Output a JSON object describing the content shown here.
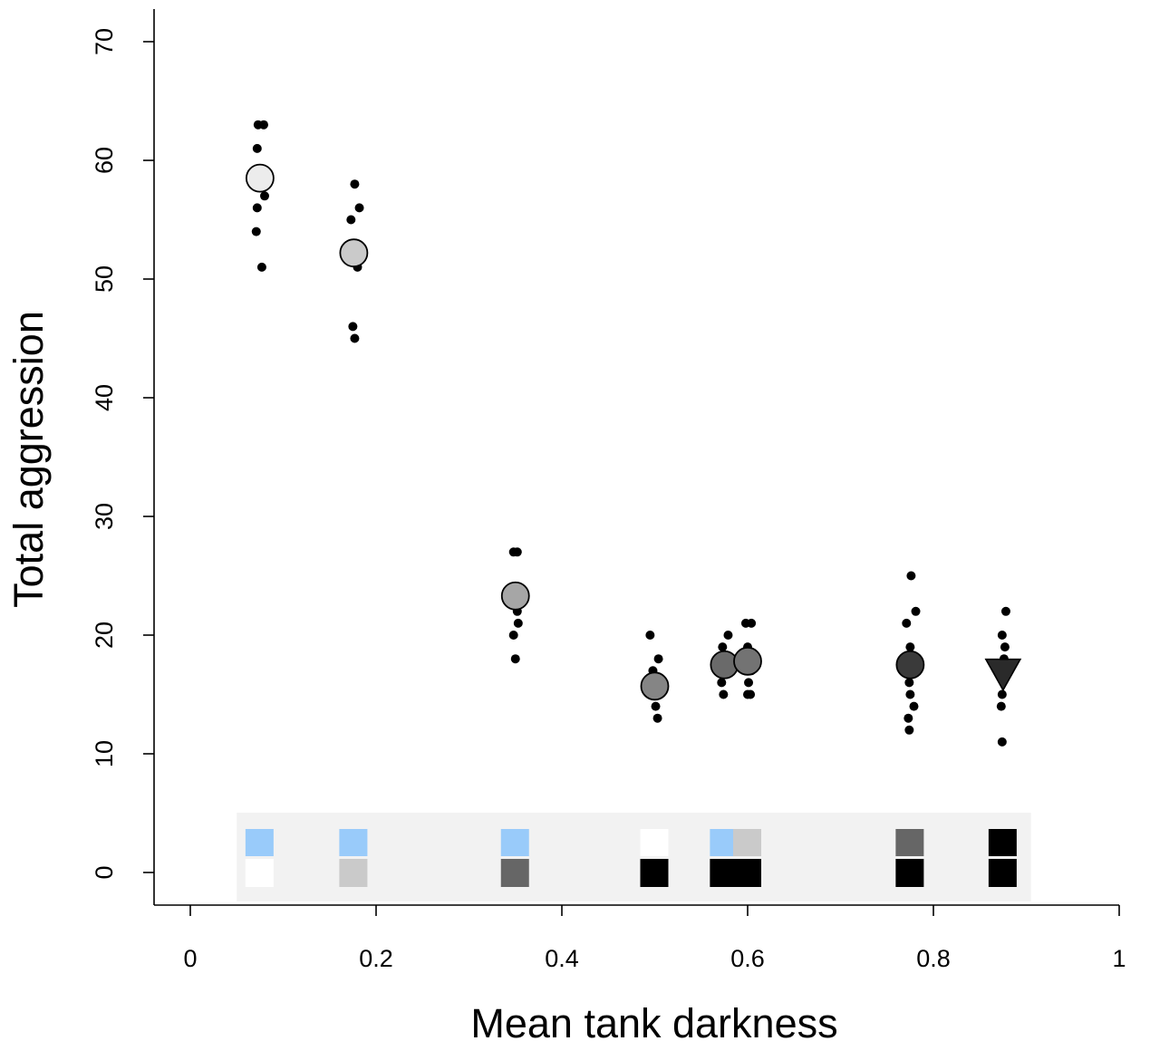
{
  "chart_data": {
    "type": "scatter",
    "title": "",
    "xlabel": "Mean tank darkness",
    "ylabel": "Total aggression",
    "xlim": [
      0,
      1
    ],
    "ylim": [
      0,
      70
    ],
    "xticks": [
      {
        "value": 0,
        "label": "0"
      },
      {
        "value": 0.2,
        "label": "0.2"
      },
      {
        "value": 0.4,
        "label": "0.4"
      },
      {
        "value": 0.6,
        "label": "0.6"
      },
      {
        "value": 0.8,
        "label": "0.8"
      },
      {
        "value": 1,
        "label": "1"
      }
    ],
    "yticks": [
      {
        "value": 0,
        "label": "0"
      },
      {
        "value": 10,
        "label": "10"
      },
      {
        "value": 20,
        "label": "20"
      },
      {
        "value": 30,
        "label": "30"
      },
      {
        "value": 40,
        "label": "40"
      },
      {
        "value": 50,
        "label": "50"
      },
      {
        "value": 60,
        "label": "60"
      },
      {
        "value": 70,
        "label": "70"
      }
    ],
    "grid": false,
    "legend": "none",
    "groups": [
      {
        "x": 0.075,
        "mean": 58.5,
        "marker": "circle",
        "mean_color": "#ececec",
        "points": [
          {
            "x": 0.073,
            "y": 63
          },
          {
            "x": 0.079,
            "y": 63
          },
          {
            "x": 0.072,
            "y": 61
          },
          {
            "x": 0.08,
            "y": 57
          },
          {
            "x": 0.072,
            "y": 56
          },
          {
            "x": 0.071,
            "y": 54
          },
          {
            "x": 0.077,
            "y": 51
          }
        ],
        "swatch": {
          "top": "#99cbfa",
          "bottom": "#ffffff"
        }
      },
      {
        "x": 0.176,
        "mean": 52.2,
        "marker": "circle",
        "mean_color": "#cacaca",
        "points": [
          {
            "x": 0.177,
            "y": 58
          },
          {
            "x": 0.182,
            "y": 56
          },
          {
            "x": 0.173,
            "y": 55
          },
          {
            "x": 0.18,
            "y": 51
          },
          {
            "x": 0.175,
            "y": 46
          },
          {
            "x": 0.177,
            "y": 45
          }
        ],
        "swatch": {
          "top": "#99cbfa",
          "bottom": "#cacaca"
        }
      },
      {
        "x": 0.35,
        "mean": 23.3,
        "marker": "circle",
        "mean_color": "#a6a6a6",
        "points": [
          {
            "x": 0.348,
            "y": 27
          },
          {
            "x": 0.352,
            "y": 27
          },
          {
            "x": 0.352,
            "y": 22
          },
          {
            "x": 0.353,
            "y": 21
          },
          {
            "x": 0.348,
            "y": 20
          },
          {
            "x": 0.35,
            "y": 18
          }
        ],
        "swatch": {
          "top": "#99cbfa",
          "bottom": "#666666"
        }
      },
      {
        "x": 0.5,
        "mean": 15.7,
        "marker": "circle",
        "mean_color": "#858585",
        "points": [
          {
            "x": 0.495,
            "y": 20
          },
          {
            "x": 0.504,
            "y": 18
          },
          {
            "x": 0.498,
            "y": 17
          },
          {
            "x": 0.501,
            "y": 14
          },
          {
            "x": 0.503,
            "y": 13
          }
        ],
        "swatch": {
          "top": "#ffffff",
          "bottom": "#000000"
        }
      },
      {
        "x": 0.575,
        "mean": 17.5,
        "marker": "circle",
        "mean_color": "#6a6a6a",
        "points": [
          {
            "x": 0.579,
            "y": 20
          },
          {
            "x": 0.573,
            "y": 19
          },
          {
            "x": 0.577,
            "y": 18
          },
          {
            "x": 0.572,
            "y": 16
          },
          {
            "x": 0.574,
            "y": 15
          }
        ],
        "swatch": {
          "top": "#99cbfa",
          "bottom": "#000000"
        }
      },
      {
        "x": 0.6,
        "mean": 17.8,
        "marker": "circle",
        "mean_color": "#737373",
        "points": [
          {
            "x": 0.598,
            "y": 21
          },
          {
            "x": 0.604,
            "y": 21
          },
          {
            "x": 0.6,
            "y": 19
          },
          {
            "x": 0.604,
            "y": 17
          },
          {
            "x": 0.601,
            "y": 16
          },
          {
            "x": 0.6,
            "y": 15
          },
          {
            "x": 0.603,
            "y": 15
          }
        ],
        "swatch": {
          "top": "#cacaca",
          "bottom": "#000000"
        }
      },
      {
        "x": 0.775,
        "mean": 17.5,
        "marker": "circle",
        "mean_color": "#3a3a3a",
        "points": [
          {
            "x": 0.776,
            "y": 25
          },
          {
            "x": 0.781,
            "y": 22
          },
          {
            "x": 0.771,
            "y": 21
          },
          {
            "x": 0.775,
            "y": 19
          },
          {
            "x": 0.774,
            "y": 16
          },
          {
            "x": 0.775,
            "y": 15
          },
          {
            "x": 0.779,
            "y": 14
          },
          {
            "x": 0.773,
            "y": 13
          },
          {
            "x": 0.774,
            "y": 12
          }
        ],
        "swatch": {
          "top": "#666666",
          "bottom": "#000000"
        }
      },
      {
        "x": 0.875,
        "mean": 17.2,
        "marker": "triangle-down",
        "mean_color": "#2a2a2a",
        "points": [
          {
            "x": 0.878,
            "y": 22
          },
          {
            "x": 0.874,
            "y": 20
          },
          {
            "x": 0.877,
            "y": 19
          },
          {
            "x": 0.876,
            "y": 18
          },
          {
            "x": 0.874,
            "y": 15
          },
          {
            "x": 0.873,
            "y": 14
          },
          {
            "x": 0.874,
            "y": 11
          }
        ],
        "swatch": {
          "top": "#000000",
          "bottom": "#000000"
        }
      }
    ],
    "inset_panel": {
      "x_range": [
        0.05,
        0.905
      ],
      "color": "#f2f2f2"
    }
  }
}
